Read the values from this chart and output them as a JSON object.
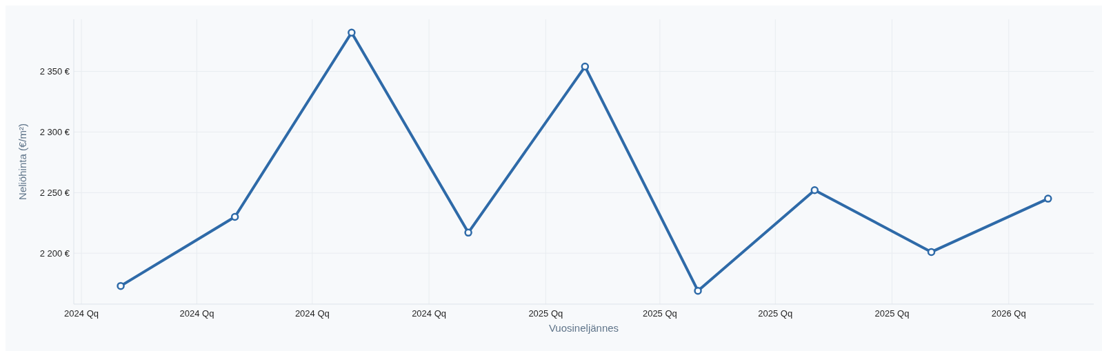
{
  "chart_data": {
    "type": "line",
    "xlabel": "Vuosineljännes",
    "ylabel": "Neliöhinta (€/m²)",
    "x": [
      "2024-02-01",
      "2024-05-01",
      "2024-08-01",
      "2024-11-01",
      "2025-02-01",
      "2025-05-01",
      "2025-08-01",
      "2025-11-01",
      "2026-02-01"
    ],
    "series": [
      {
        "color": "#2e6aa8",
        "values": [
          2173,
          2230,
          2382,
          2217,
          2354,
          2169,
          2252,
          2201,
          2245
        ]
      }
    ],
    "xlim": [
      "2023-12-26",
      "2026-03-09"
    ],
    "xticks": [
      {
        "value": "2024-01-01",
        "label": "2024 Qq"
      },
      {
        "value": "2024-04-01",
        "label": "2024 Qq"
      },
      {
        "value": "2024-07-01",
        "label": "2024 Qq"
      },
      {
        "value": "2024-10-01",
        "label": "2024 Qq"
      },
      {
        "value": "2025-01-01",
        "label": "2025 Qq"
      },
      {
        "value": "2025-04-01",
        "label": "2025 Qq"
      },
      {
        "value": "2025-07-01",
        "label": "2025 Qq"
      },
      {
        "value": "2025-10-01",
        "label": "2025 Qq"
      },
      {
        "value": "2026-01-01",
        "label": "2026 Qq"
      }
    ],
    "ylim": [
      2158,
      2393
    ],
    "yticks": [
      {
        "value": 2200,
        "label": "2 200 €"
      },
      {
        "value": 2250,
        "label": "2 250 €"
      },
      {
        "value": 2300,
        "label": "2 300 €"
      },
      {
        "value": 2350,
        "label": "2 350 €"
      }
    ],
    "grid": true,
    "marker": "circle",
    "line_style": "solid"
  }
}
